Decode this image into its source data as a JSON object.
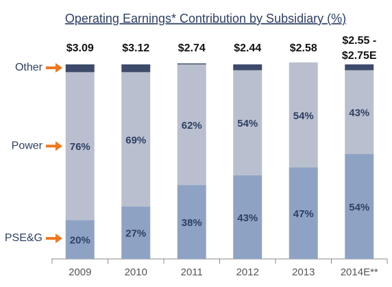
{
  "chart_data": {
    "type": "stacked_bar",
    "title": "Operating Earnings* Contribution by Subsidiary (%)",
    "categories": [
      "2009",
      "2010",
      "2011",
      "2012",
      "2013",
      "2014E**"
    ],
    "top_labels": [
      [
        "$3.09"
      ],
      [
        "$3.12"
      ],
      [
        "$2.74"
      ],
      [
        "$2.44"
      ],
      [
        "$2.58"
      ],
      [
        "$2.55 -",
        "$2.75E"
      ]
    ],
    "ylim": [
      0,
      100
    ],
    "series": [
      {
        "name": "PSE&G",
        "color": "#8ea3c4",
        "values": [
          20,
          27,
          38,
          43,
          47,
          54
        ],
        "value_labels": [
          "20%",
          "27%",
          "38%",
          "43%",
          "47%",
          "54%"
        ]
      },
      {
        "name": "Power",
        "color": "#b9bfce",
        "values": [
          76,
          69,
          62,
          54,
          54,
          43
        ],
        "value_labels": [
          "76%",
          "69%",
          "62%",
          "54%",
          "54%",
          "43%"
        ]
      },
      {
        "name": "Other",
        "color": "#3d4b6b",
        "values": [
          4,
          4,
          0.5,
          3,
          0,
          3
        ]
      }
    ]
  }
}
